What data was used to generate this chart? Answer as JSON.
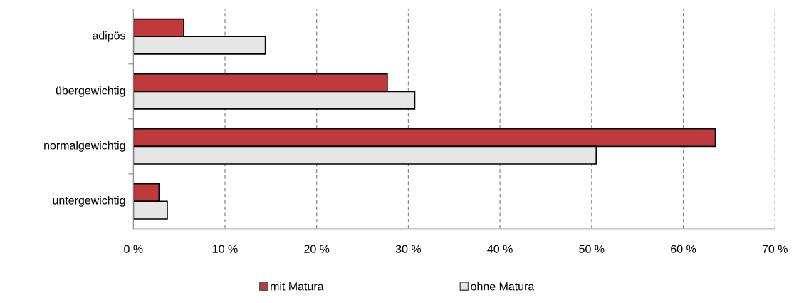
{
  "chart_data": {
    "type": "bar",
    "orientation": "horizontal",
    "categories": [
      "adipös",
      "übergewichtig",
      "normalgewichtig",
      "untergewichtig"
    ],
    "series": [
      {
        "name": "mit Matura",
        "color": "#c0393d",
        "values": [
          5.5,
          27.7,
          63.5,
          2.8
        ]
      },
      {
        "name": "ohne Matura",
        "color": "#e6e6e6",
        "values": [
          14.4,
          30.7,
          50.5,
          3.7
        ]
      }
    ],
    "xlim": [
      0,
      70
    ],
    "xticks": [
      {
        "value": 0,
        "label": "0 %"
      },
      {
        "value": 10,
        "label": "10 %"
      },
      {
        "value": 20,
        "label": "20 %"
      },
      {
        "value": 30,
        "label": "30 %"
      },
      {
        "value": 40,
        "label": "40 %"
      },
      {
        "value": 50,
        "label": "50 %"
      },
      {
        "value": 60,
        "label": "60 %"
      },
      {
        "value": 70,
        "label": "70 %"
      }
    ],
    "grid": "x",
    "legend": "bottom",
    "line_style": "dashed"
  }
}
